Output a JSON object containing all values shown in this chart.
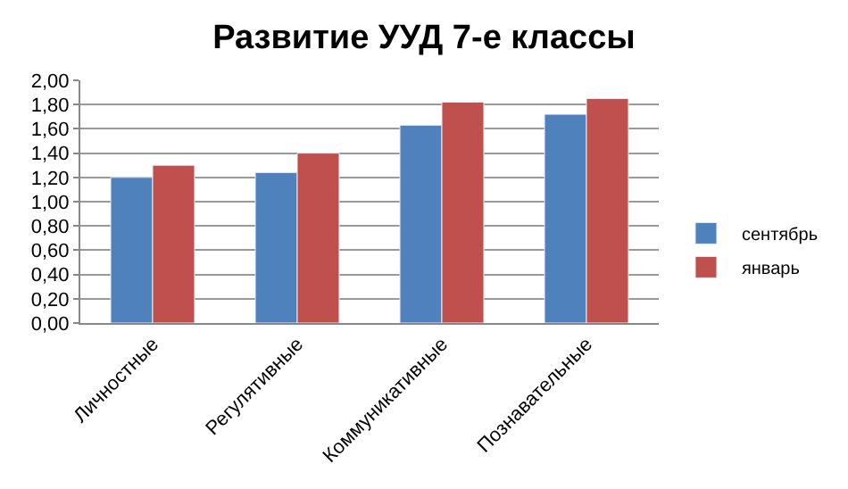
{
  "chart_data": {
    "type": "bar",
    "title": "Развитие УУД 7-е классы",
    "categories": [
      "Личностные",
      "Регулятивные",
      "Коммуникативные",
      "Познавательные"
    ],
    "series": [
      {
        "name": "сентябрь",
        "color": "#4f81bd",
        "values": [
          1.2,
          1.24,
          1.63,
          1.72
        ]
      },
      {
        "name": "январь",
        "color": "#c0504d",
        "values": [
          1.3,
          1.4,
          1.82,
          1.85
        ]
      }
    ],
    "ylim": [
      0,
      2
    ],
    "yticks": [
      {
        "value": 0,
        "label": "0,00"
      },
      {
        "value": 0.2,
        "label": "0,20"
      },
      {
        "value": 0.4,
        "label": "0,40"
      },
      {
        "value": 0.6,
        "label": "0,60"
      },
      {
        "value": 0.8,
        "label": "0,80"
      },
      {
        "value": 1.0,
        "label": "1,00"
      },
      {
        "value": 1.2,
        "label": "1,20"
      },
      {
        "value": 1.4,
        "label": "1,40"
      },
      {
        "value": 1.6,
        "label": "1,60"
      },
      {
        "value": 1.8,
        "label": "1,80"
      },
      {
        "value": 2.0,
        "label": "2,00"
      }
    ],
    "grid": "y",
    "legend": "right"
  }
}
